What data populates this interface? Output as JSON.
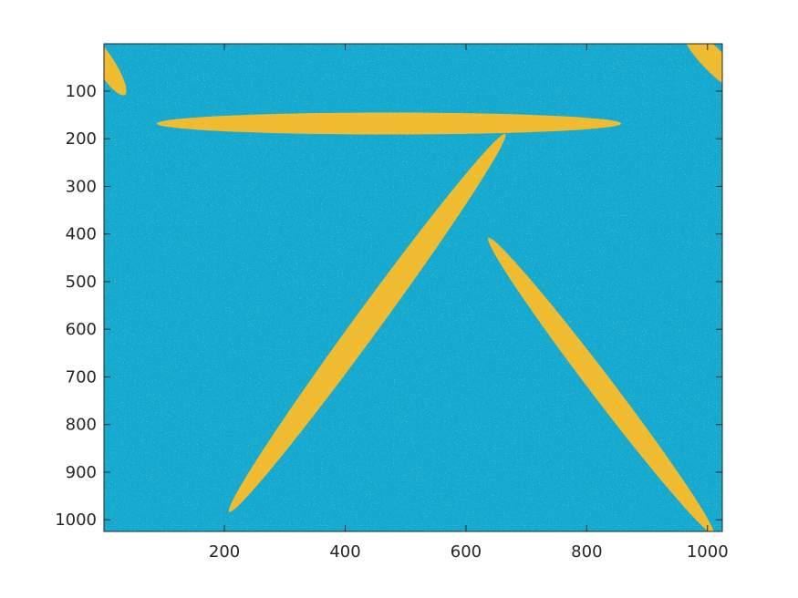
{
  "chart_data": {
    "type": "heatmap",
    "title": "",
    "xlabel": "",
    "ylabel": "",
    "xlim": [
      1,
      1024
    ],
    "ylim": [
      1,
      1024
    ],
    "y_reversed": true,
    "grid": false,
    "x_ticks": [
      200,
      400,
      600,
      800,
      1000
    ],
    "y_ticks": [
      100,
      200,
      300,
      400,
      500,
      600,
      700,
      800,
      900,
      1000
    ],
    "x_tick_labels": [
      "200",
      "400",
      "600",
      "800",
      "1000"
    ],
    "y_tick_labels": [
      "100",
      "200",
      "300",
      "400",
      "500",
      "600",
      "700",
      "800",
      "900",
      "1000"
    ],
    "background_color": "#16a9d0",
    "foreground_color": "#f2bb2e",
    "noise_color": "#3fc08a",
    "shapes": [
      {
        "name": "horizontal-ellipse",
        "from": [
          88,
          168
        ],
        "to": [
          857,
          168
        ],
        "width": 46
      },
      {
        "name": "long-diagonal-ellipse",
        "from": [
          208,
          983
        ],
        "to": [
          665,
          190
        ],
        "width": 54
      },
      {
        "name": "right-diagonal-ellipse",
        "from": [
          637,
          408
        ],
        "to": [
          1010,
          1030
        ],
        "width": 48
      },
      {
        "name": "top-left-corner-ellipse",
        "from": [
          -30,
          -20
        ],
        "to": [
          35,
          108
        ],
        "width": 40
      },
      {
        "name": "top-right-corner-ellipse",
        "from": [
          960,
          -30
        ],
        "to": [
          1060,
          100
        ],
        "width": 48
      }
    ]
  }
}
